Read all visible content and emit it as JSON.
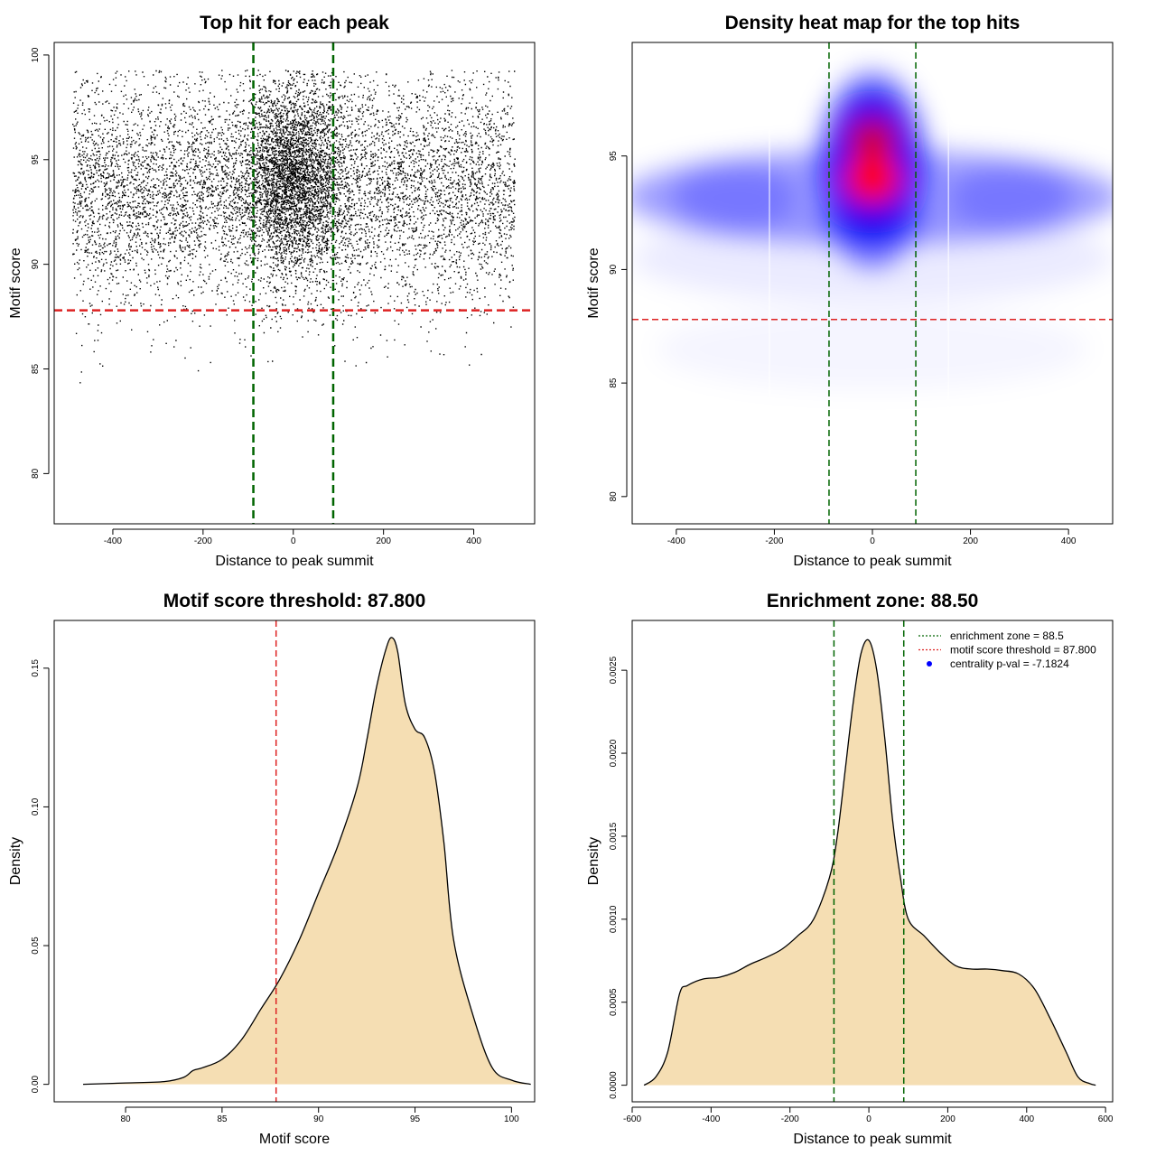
{
  "colors": {
    "points": "#000000",
    "enrichment_line": "#006400",
    "threshold_line": "#dd2222",
    "density_fill": "#f5deb3",
    "density_stroke": "#000000",
    "heat_low": "#ffffff",
    "heat_mid": "#0000ff",
    "heat_high": "#ff0000",
    "pval_marker": "#0000ff"
  },
  "chart_data": [
    {
      "type": "scatter",
      "title": "Top hit for each peak",
      "xlabel": "Distance to peak summit",
      "ylabel": "Motif score",
      "xlim": [
        -530,
        535
      ],
      "ylim": [
        77.6,
        100.6
      ],
      "xticks": [
        -400,
        -200,
        0,
        200,
        400
      ],
      "yticks": [
        80,
        85,
        90,
        95,
        100
      ],
      "x_range": [
        -490,
        490
      ],
      "score_distribution": {
        "mean": 93.6,
        "sd": 2.7,
        "central_peak_mean": 94.2,
        "central_peak_sd": 2.2
      },
      "vlines": [
        -88.5,
        88.5
      ],
      "hline": 87.8,
      "grid": false
    },
    {
      "type": "heatmap",
      "title": "Density heat map for the top hits",
      "xlabel": "Distance to peak summit",
      "ylabel": "Motif score",
      "xlim": [
        -490,
        490
      ],
      "ylim": [
        78.8,
        100
      ],
      "xticks": [
        -400,
        -200,
        0,
        200,
        400
      ],
      "yticks": [
        80,
        85,
        90,
        95
      ],
      "hotspots": [
        {
          "x": 0,
          "y": 94.0,
          "intensity": 1.0
        },
        {
          "x": 0,
          "y": 95.7,
          "intensity": 0.8
        },
        {
          "x": -280,
          "y": 93.2,
          "intensity": 0.35
        },
        {
          "x": 280,
          "y": 93.2,
          "intensity": 0.35
        }
      ],
      "vlines": [
        -88.5,
        88.5
      ],
      "hline": 87.8,
      "grid": false
    },
    {
      "type": "area",
      "title": "Motif score threshold: 87.800",
      "xlabel": "Motif score",
      "ylabel": "Density",
      "xlim": [
        76.3,
        101.2
      ],
      "ylim": [
        -0.0063,
        0.1672
      ],
      "xticks": [
        80,
        85,
        90,
        95,
        100
      ],
      "yticks": [
        0.0,
        0.05,
        0.1,
        0.15
      ],
      "ytick_labels": [
        "0.00",
        "0.05",
        "0.10",
        "0.15"
      ],
      "x": [
        77.8,
        80,
        82,
        83,
        83.5,
        84,
        85,
        86,
        87,
        88,
        89,
        90,
        91,
        92,
        92.5,
        93,
        93.5,
        93.8,
        94.1,
        94.5,
        95,
        95.5,
        96,
        96.5,
        97,
        98,
        99,
        100,
        101
      ],
      "y": [
        0.0,
        0.0005,
        0.001,
        0.0025,
        0.005,
        0.006,
        0.009,
        0.016,
        0.027,
        0.038,
        0.052,
        0.069,
        0.086,
        0.107,
        0.124,
        0.143,
        0.157,
        0.161,
        0.156,
        0.137,
        0.128,
        0.125,
        0.113,
        0.087,
        0.052,
        0.025,
        0.006,
        0.0015,
        0.0
      ],
      "vline": 87.8,
      "grid": false
    },
    {
      "type": "area",
      "title": "Enrichment zone: 88.50",
      "xlabel": "Distance to peak summit",
      "ylabel": "Density",
      "xlim": [
        -600,
        618
      ],
      "ylim": [
        -0.0001,
        0.0028
      ],
      "xticks": [
        -600,
        -400,
        -200,
        0,
        200,
        400,
        600
      ],
      "yticks": [
        0.0,
        0.0005,
        0.001,
        0.0015,
        0.002,
        0.0025
      ],
      "ytick_labels": [
        "0.0000",
        "0.0005",
        "0.0010",
        "0.0015",
        "0.0020",
        "0.0025"
      ],
      "x": [
        -570,
        -540,
        -510,
        -480,
        -460,
        -420,
        -380,
        -340,
        -300,
        -260,
        -220,
        -180,
        -140,
        -100,
        -80,
        -60,
        -40,
        -20,
        0,
        20,
        40,
        60,
        80,
        100,
        140,
        180,
        220,
        260,
        300,
        340,
        380,
        420,
        460,
        500,
        530,
        560,
        575
      ],
      "y": [
        0.0,
        5e-05,
        0.0002,
        0.00055,
        0.0006,
        0.00064,
        0.00065,
        0.00068,
        0.00073,
        0.00077,
        0.00082,
        0.0009,
        0.001,
        0.00125,
        0.0015,
        0.0019,
        0.0023,
        0.0026,
        0.00268,
        0.0025,
        0.0021,
        0.0016,
        0.00125,
        0.001,
        0.0009,
        0.0008,
        0.00072,
        0.0007,
        0.0007,
        0.00069,
        0.00067,
        0.00058,
        0.0004,
        0.0002,
        5e-05,
        1e-05,
        0.0
      ],
      "vlines": [
        -88.5,
        88.5
      ],
      "grid": false,
      "legend": {
        "placement": "top-right",
        "entries": [
          {
            "label": "enrichment zone = 88.5",
            "style": "dotted",
            "color": "#006400"
          },
          {
            "label": "motif score threshold = 87.800",
            "style": "dotted",
            "color": "#dd2222"
          },
          {
            "label": "centrality p-val = -7.1824",
            "style": "point",
            "color": "#0000ff"
          }
        ]
      }
    }
  ]
}
